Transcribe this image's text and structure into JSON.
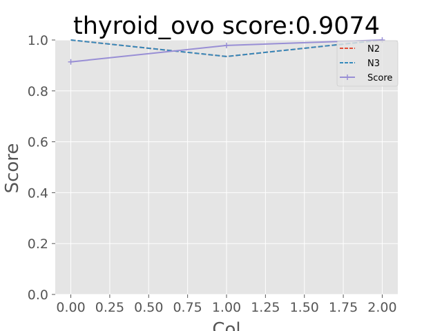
{
  "chart_data": {
    "type": "line",
    "title": "thyroid_ovo score:0.9074",
    "xlabel": "Col",
    "ylabel": "Score",
    "xlim": [
      -0.1,
      2.1
    ],
    "ylim": [
      0.0,
      1.0
    ],
    "x_ticks": [
      "0.00",
      "0.25",
      "0.50",
      "0.75",
      "1.00",
      "1.25",
      "1.50",
      "1.75",
      "2.00"
    ],
    "y_ticks": [
      "0.0",
      "0.2",
      "0.4",
      "0.6",
      "0.8",
      "1.0"
    ],
    "grid": true,
    "legend_position": "top-right",
    "series": [
      {
        "name": "N2",
        "x": [
          0,
          1,
          2
        ],
        "y": [
          1.0,
          0.9352,
          1.0
        ],
        "color": "#e24a33",
        "linestyle": "dashed",
        "marker": "none"
      },
      {
        "name": "N3",
        "x": [
          0,
          1,
          2
        ],
        "y": [
          1.0,
          0.9352,
          1.0
        ],
        "color": "#348abd",
        "linestyle": "dashed",
        "marker": "none"
      },
      {
        "name": "Score",
        "x": [
          0,
          1,
          2
        ],
        "y": [
          0.9139,
          0.9787,
          1.0
        ],
        "color": "#988ed5",
        "linestyle": "solid",
        "marker": "plus"
      }
    ]
  },
  "colors": {
    "plot_background": "#e5e5e5",
    "grid": "#ffffff",
    "text": "#555555"
  }
}
